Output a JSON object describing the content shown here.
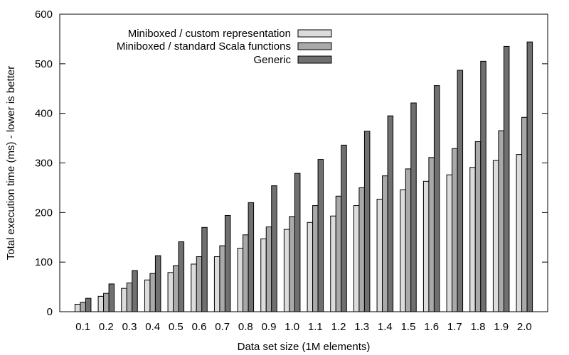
{
  "chart_data": {
    "type": "bar",
    "title": "",
    "xlabel": "Data set size (1M elements)",
    "ylabel": "Total execution time (ms) - lower is better",
    "ylim": [
      0,
      600
    ],
    "yticks": [
      0,
      100,
      200,
      300,
      400,
      500,
      600
    ],
    "grid": false,
    "legend_position": "top-right",
    "categories": [
      "0.1",
      "0.2",
      "0.3",
      "0.4",
      "0.5",
      "0.6",
      "0.7",
      "0.8",
      "0.9",
      "1.0",
      "1.1",
      "1.2",
      "1.3",
      "1.4",
      "1.5",
      "1.6",
      "1.7",
      "1.8",
      "1.9",
      "2.0"
    ],
    "series": [
      {
        "name": "Miniboxed / custom representation",
        "color": "#dcdcdc",
        "values": [
          15,
          31,
          47,
          64,
          79,
          96,
          111,
          128,
          147,
          166,
          180,
          193,
          214,
          227,
          246,
          263,
          276,
          291,
          305,
          317
        ]
      },
      {
        "name": "Miniboxed / standard Scala functions",
        "color": "#a9a9a9",
        "values": [
          19,
          37,
          58,
          77,
          93,
          111,
          133,
          155,
          171,
          192,
          214,
          233,
          250,
          274,
          288,
          311,
          329,
          343,
          365,
          392
        ]
      },
      {
        "name": "Generic",
        "color": "#707070",
        "values": [
          27,
          56,
          83,
          113,
          141,
          170,
          194,
          220,
          254,
          279,
          307,
          336,
          364,
          395,
          421,
          456,
          487,
          505,
          535,
          544
        ]
      }
    ]
  }
}
